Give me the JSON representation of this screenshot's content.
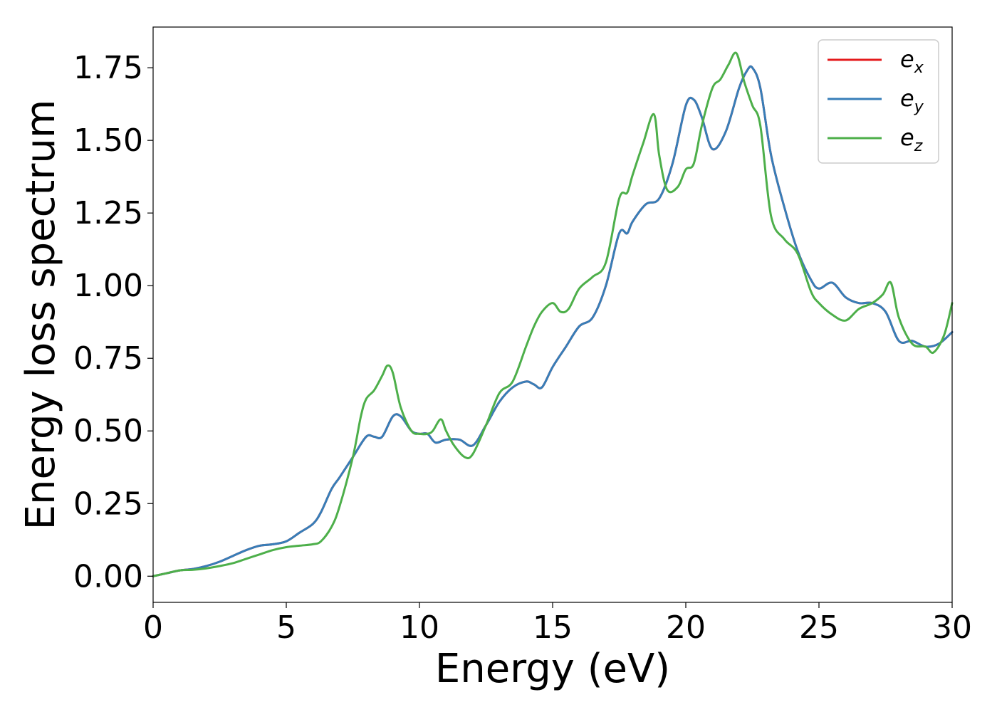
{
  "chart_data": {
    "type": "line",
    "xlabel": "Energy (eV)",
    "ylabel": "Energy loss spectrum",
    "xlim": [
      0,
      30
    ],
    "ylim": [
      -0.09,
      1.89
    ],
    "xticks": [
      0,
      5,
      10,
      15,
      20,
      25,
      30
    ],
    "xtick_labels": [
      "0",
      "5",
      "10",
      "15",
      "20",
      "25",
      "30"
    ],
    "yticks": [
      0.0,
      0.25,
      0.5,
      0.75,
      1.0,
      1.25,
      1.5,
      1.75
    ],
    "ytick_labels": [
      "0.00",
      "0.25",
      "0.50",
      "0.75",
      "1.00",
      "1.25",
      "1.50",
      "1.75"
    ],
    "grid": false,
    "legend_position": "top-right",
    "series": [
      {
        "name": "e",
        "sub": "x",
        "color": "#e41a1c",
        "x": [
          0,
          0.5,
          1,
          1.5,
          2,
          2.5,
          3,
          3.5,
          4,
          4.5,
          5,
          5.5,
          6,
          6.3,
          6.7,
          7,
          7.5,
          8,
          8.3,
          8.6,
          9,
          9.3,
          9.7,
          10,
          10.3,
          10.6,
          11,
          11.5,
          12,
          12.5,
          13,
          13.5,
          14,
          14.3,
          14.6,
          15,
          15.5,
          16,
          16.5,
          17,
          17.5,
          17.8,
          18,
          18.5,
          19,
          19.5,
          20,
          20.3,
          20.6,
          21,
          21.5,
          22,
          22.3,
          22.5,
          22.8,
          23.2,
          23.7,
          24.2,
          24.7,
          25,
          25.5,
          26,
          26.5,
          27,
          27.5,
          28,
          28.5,
          29,
          29.5,
          30
        ],
        "y": [
          0.0,
          0.01,
          0.02,
          0.025,
          0.035,
          0.05,
          0.07,
          0.09,
          0.105,
          0.11,
          0.12,
          0.15,
          0.18,
          0.22,
          0.3,
          0.34,
          0.41,
          0.48,
          0.48,
          0.48,
          0.55,
          0.55,
          0.5,
          0.49,
          0.49,
          0.46,
          0.47,
          0.47,
          0.45,
          0.52,
          0.6,
          0.65,
          0.67,
          0.66,
          0.65,
          0.72,
          0.79,
          0.86,
          0.89,
          1.0,
          1.18,
          1.18,
          1.22,
          1.28,
          1.3,
          1.42,
          1.62,
          1.64,
          1.58,
          1.47,
          1.53,
          1.68,
          1.74,
          1.75,
          1.68,
          1.45,
          1.27,
          1.12,
          1.02,
          0.99,
          1.01,
          0.96,
          0.94,
          0.94,
          0.91,
          0.81,
          0.81,
          0.79,
          0.8,
          0.84
        ]
      },
      {
        "name": "e",
        "sub": "y",
        "color": "#377eb8",
        "x": [
          0,
          0.5,
          1,
          1.5,
          2,
          2.5,
          3,
          3.5,
          4,
          4.5,
          5,
          5.5,
          6,
          6.3,
          6.7,
          7,
          7.5,
          8,
          8.3,
          8.6,
          9,
          9.3,
          9.7,
          10,
          10.3,
          10.6,
          11,
          11.5,
          12,
          12.5,
          13,
          13.5,
          14,
          14.3,
          14.6,
          15,
          15.5,
          16,
          16.5,
          17,
          17.5,
          17.8,
          18,
          18.5,
          19,
          19.5,
          20,
          20.3,
          20.6,
          21,
          21.5,
          22,
          22.3,
          22.5,
          22.8,
          23.2,
          23.7,
          24.2,
          24.7,
          25,
          25.5,
          26,
          26.5,
          27,
          27.5,
          28,
          28.5,
          29,
          29.5,
          30
        ],
        "y": [
          0.0,
          0.01,
          0.02,
          0.025,
          0.035,
          0.05,
          0.07,
          0.09,
          0.105,
          0.11,
          0.12,
          0.15,
          0.18,
          0.22,
          0.3,
          0.34,
          0.41,
          0.48,
          0.48,
          0.48,
          0.55,
          0.55,
          0.5,
          0.49,
          0.49,
          0.46,
          0.47,
          0.47,
          0.45,
          0.52,
          0.6,
          0.65,
          0.67,
          0.66,
          0.65,
          0.72,
          0.79,
          0.86,
          0.89,
          1.0,
          1.18,
          1.18,
          1.22,
          1.28,
          1.3,
          1.42,
          1.62,
          1.64,
          1.58,
          1.47,
          1.53,
          1.68,
          1.74,
          1.75,
          1.68,
          1.45,
          1.27,
          1.12,
          1.02,
          0.99,
          1.01,
          0.96,
          0.94,
          0.94,
          0.91,
          0.81,
          0.81,
          0.79,
          0.8,
          0.84
        ]
      },
      {
        "name": "e",
        "sub": "z",
        "color": "#4daf4a",
        "x": [
          0,
          0.5,
          1,
          1.5,
          2,
          2.5,
          3,
          3.5,
          4,
          4.5,
          5,
          5.5,
          6,
          6.3,
          6.7,
          7,
          7.5,
          7.8,
          8,
          8.3,
          8.6,
          8.8,
          9,
          9.3,
          9.7,
          10,
          10.3,
          10.5,
          10.8,
          11,
          11.3,
          11.7,
          12,
          12.5,
          13,
          13.5,
          14,
          14.3,
          14.6,
          15,
          15.3,
          15.6,
          16,
          16.5,
          17,
          17.5,
          17.8,
          18,
          18.4,
          18.8,
          19,
          19.3,
          19.7,
          20,
          20.3,
          20.6,
          21,
          21.3,
          21.6,
          21.9,
          22.2,
          22.5,
          22.8,
          23.2,
          23.7,
          24.2,
          24.7,
          25,
          25.5,
          26,
          26.5,
          27,
          27.4,
          27.7,
          28,
          28.5,
          29,
          29.3,
          29.7,
          30
        ],
        "y": [
          0.0,
          0.01,
          0.02,
          0.022,
          0.027,
          0.035,
          0.045,
          0.06,
          0.075,
          0.09,
          0.1,
          0.105,
          0.11,
          0.12,
          0.17,
          0.24,
          0.41,
          0.55,
          0.61,
          0.64,
          0.69,
          0.725,
          0.7,
          0.58,
          0.5,
          0.49,
          0.49,
          0.5,
          0.54,
          0.5,
          0.45,
          0.41,
          0.42,
          0.52,
          0.63,
          0.67,
          0.79,
          0.86,
          0.91,
          0.94,
          0.91,
          0.92,
          0.99,
          1.03,
          1.08,
          1.3,
          1.32,
          1.38,
          1.49,
          1.59,
          1.45,
          1.33,
          1.34,
          1.4,
          1.42,
          1.55,
          1.68,
          1.71,
          1.76,
          1.8,
          1.7,
          1.62,
          1.55,
          1.24,
          1.16,
          1.11,
          0.98,
          0.94,
          0.9,
          0.88,
          0.92,
          0.94,
          0.97,
          1.01,
          0.89,
          0.8,
          0.79,
          0.77,
          0.83,
          0.94
        ]
      }
    ]
  }
}
